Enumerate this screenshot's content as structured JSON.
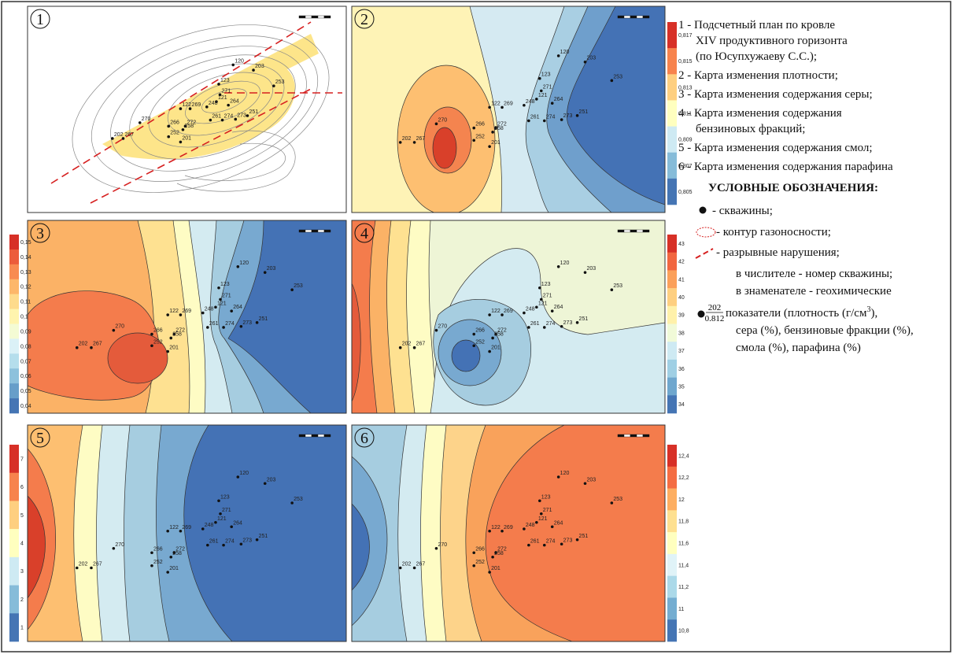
{
  "panel_numbers": [
    "1",
    "2",
    "3",
    "4",
    "5",
    "6"
  ],
  "colorbars": {
    "p2": [
      "0,817",
      "0,815",
      "0,813",
      "0,811",
      "0,809",
      "0,807",
      "0,805"
    ],
    "p3": [
      "0,15",
      "0,14",
      "0,13",
      "0,12",
      "0,11",
      "0,1",
      "0,09",
      "0,08",
      "0,07",
      "0,06",
      "0,05",
      "0,04"
    ],
    "p4": [
      "43",
      "42",
      "41",
      "40",
      "39",
      "38",
      "37",
      "36",
      "35",
      "34"
    ],
    "p5": [
      "7",
      "6",
      "5",
      "4",
      "3",
      "2",
      "1"
    ],
    "p6": [
      "12,4",
      "12,2",
      "12",
      "11,8",
      "11,6",
      "11,4",
      "11,2",
      "11",
      "10,8"
    ]
  },
  "wells": [
    "120",
    "203",
    "123",
    "271",
    "121",
    "264",
    "253",
    "122",
    "269",
    "248",
    "251",
    "273",
    "274",
    "261",
    "266",
    "272",
    "258",
    "252",
    "201",
    "270",
    "202",
    "267"
  ],
  "legend": {
    "lines": [
      "1 - Подсчетный план по кровле",
      "XIV продуктивного горизонта",
      "(по Юсупхужаеву С.С.);",
      "2 - Карта изменения плотности;",
      "3 - Карта изменения содержания серы;",
      "4 - Карта изменения содержания",
      "бензиновых фракций;",
      "5 - Карта изменения содержания смол;",
      "6 - Карта изменения содержания парафина"
    ]
  },
  "conventions": {
    "title": "УСЛОВНЫЕ ОБОЗНАЧЕНИЯ:",
    "wells": "- скважины;",
    "gas_contour": "- контур газоносности;",
    "faults": "- разрывные нарушения;",
    "explanation": [
      "в числителе - номер скважины;",
      "в знаменателе - геохимические"
    ],
    "numerator": "202",
    "denominator": "0.812",
    "density_text": "показатели (плотность (г/см",
    "superscript": "3",
    "density_tail": "),",
    "lines_after": [
      "сера (%), бензиновые фракции (%),",
      "смола (%), парафина (%)"
    ]
  }
}
